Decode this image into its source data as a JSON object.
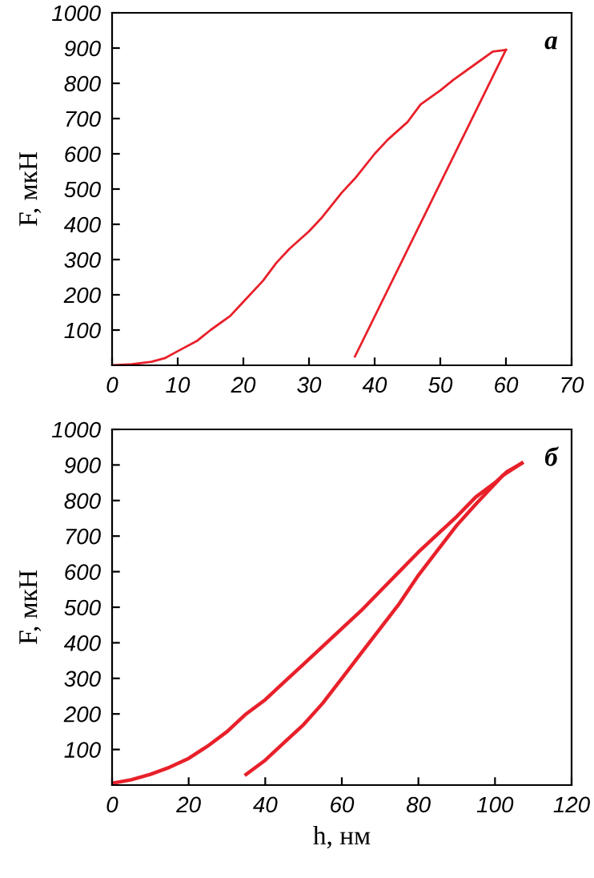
{
  "chart_data": [
    {
      "type": "line",
      "annotations": [
        "а"
      ],
      "ylabel": "F, мкН",
      "xlim": [
        0,
        70
      ],
      "xticks": [
        0,
        10,
        20,
        30,
        40,
        50,
        60,
        70
      ],
      "ylim": [
        0,
        1000
      ],
      "yticks": [
        100,
        200,
        300,
        400,
        500,
        600,
        700,
        800,
        900,
        1000
      ],
      "series": [
        {
          "color": "#e8202a",
          "x": [
            0,
            3,
            6,
            8,
            10,
            13,
            15,
            18,
            20,
            23,
            25,
            27,
            30,
            32,
            35,
            37,
            40,
            42,
            45,
            47,
            50,
            52,
            55,
            58,
            60
          ],
          "values": [
            0,
            3,
            10,
            20,
            40,
            70,
            100,
            140,
            180,
            240,
            290,
            330,
            380,
            420,
            490,
            530,
            600,
            640,
            690,
            740,
            780,
            810,
            850,
            890,
            895
          ]
        },
        {
          "color": "#e8202a",
          "x": [
            60,
            37
          ],
          "values": [
            895,
            25
          ]
        }
      ]
    },
    {
      "type": "line",
      "annotations": [
        "б"
      ],
      "xlabel": "h, нм",
      "ylabel": "F, мкН",
      "xlim": [
        0,
        120
      ],
      "xticks": [
        0,
        20,
        40,
        60,
        80,
        100,
        120
      ],
      "ylim": [
        0,
        1000
      ],
      "yticks": [
        100,
        200,
        300,
        400,
        500,
        600,
        700,
        800,
        900,
        1000
      ],
      "series": [
        {
          "color": "#e8202a",
          "x": [
            0,
            5,
            10,
            15,
            20,
            25,
            30,
            35,
            40,
            45,
            50,
            55,
            60,
            65,
            70,
            75,
            80,
            85,
            90,
            95,
            100,
            103,
            107
          ],
          "values": [
            5,
            15,
            30,
            50,
            75,
            110,
            150,
            200,
            240,
            290,
            340,
            390,
            440,
            490,
            545,
            600,
            655,
            705,
            755,
            810,
            850,
            880,
            905
          ]
        },
        {
          "color": "#e8202a",
          "x": [
            107,
            102,
            95,
            90,
            85,
            80,
            75,
            70,
            65,
            60,
            55,
            50,
            45,
            40,
            35
          ],
          "values": [
            905,
            870,
            790,
            730,
            660,
            590,
            510,
            440,
            370,
            300,
            230,
            170,
            120,
            70,
            30
          ]
        }
      ]
    }
  ]
}
